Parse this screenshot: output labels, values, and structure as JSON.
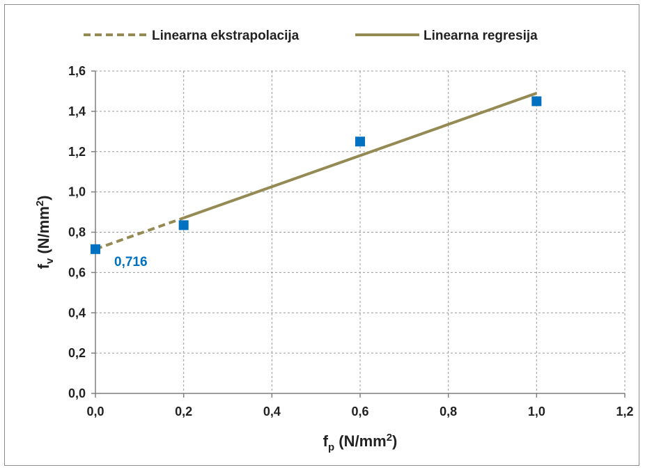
{
  "chart_data": {
    "type": "scatter",
    "xlabel": {
      "base": "f",
      "sub": "p",
      "unit": " (N/mm",
      "sup": "2",
      "close": ")"
    },
    "ylabel": {
      "base": "f",
      "sub": "v",
      "unit": " (N/mm",
      "sup": "2",
      "close": ")"
    },
    "xlim": [
      0,
      1.2
    ],
    "ylim": [
      0,
      1.6
    ],
    "x_ticks": [
      "0,0",
      "0,2",
      "0,4",
      "0,6",
      "0,8",
      "1,0",
      "1,2"
    ],
    "y_ticks": [
      "0,0",
      "0,2",
      "0,4",
      "0,6",
      "0,8",
      "1,0",
      "1,2",
      "1,4",
      "1,6"
    ],
    "grid": true,
    "legend_position": "top",
    "series": [
      {
        "kind": "points",
        "x": [
          0.0,
          0.2,
          0.6,
          1.0
        ],
        "y": [
          0.716,
          0.835,
          1.25,
          1.45
        ],
        "color": "#0070c0"
      },
      {
        "kind": "line",
        "name": "Linearna ekstrapolacija",
        "style": "dashed",
        "x": [
          0.0,
          0.2
        ],
        "y": [
          0.716,
          0.871
        ],
        "color": "#948a54"
      },
      {
        "kind": "line",
        "name": "Linearna regresija",
        "style": "solid",
        "x": [
          0.2,
          1.0
        ],
        "y": [
          0.871,
          1.49
        ],
        "color": "#948a54"
      }
    ],
    "annotations": [
      {
        "text": "0,716",
        "x": 0.0,
        "y": 0.716,
        "color": "#0070c0"
      }
    ]
  }
}
